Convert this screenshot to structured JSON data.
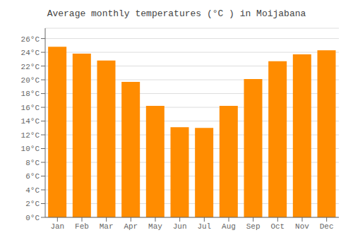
{
  "chart_data": {
    "type": "bar",
    "title": "Average monthly temperatures (°C ) in Moijabana",
    "categories": [
      "Jan",
      "Feb",
      "Mar",
      "Apr",
      "May",
      "Jun",
      "Jul",
      "Aug",
      "Sep",
      "Oct",
      "Nov",
      "Dec"
    ],
    "values": [
      24.8,
      23.8,
      22.8,
      19.7,
      16.2,
      13.1,
      13.0,
      16.2,
      20.1,
      22.7,
      23.7,
      24.3
    ],
    "color": "#FF8C00",
    "ylim": [
      0,
      27.5
    ],
    "yticks": [
      {
        "value": 0,
        "label": "0°C"
      },
      {
        "value": 2,
        "label": "2°C"
      },
      {
        "value": 4,
        "label": "4°C"
      },
      {
        "value": 6,
        "label": "6°C"
      },
      {
        "value": 8,
        "label": "8°C"
      },
      {
        "value": 10,
        "label": "10°C"
      },
      {
        "value": 12,
        "label": "12°C"
      },
      {
        "value": 14,
        "label": "14°C"
      },
      {
        "value": 16,
        "label": "16°C"
      },
      {
        "value": 18,
        "label": "18°C"
      },
      {
        "value": 20,
        "label": "20°C"
      },
      {
        "value": 22,
        "label": "22°C"
      },
      {
        "value": 24,
        "label": "24°C"
      },
      {
        "value": 26,
        "label": "26°C"
      }
    ],
    "grid": true
  }
}
